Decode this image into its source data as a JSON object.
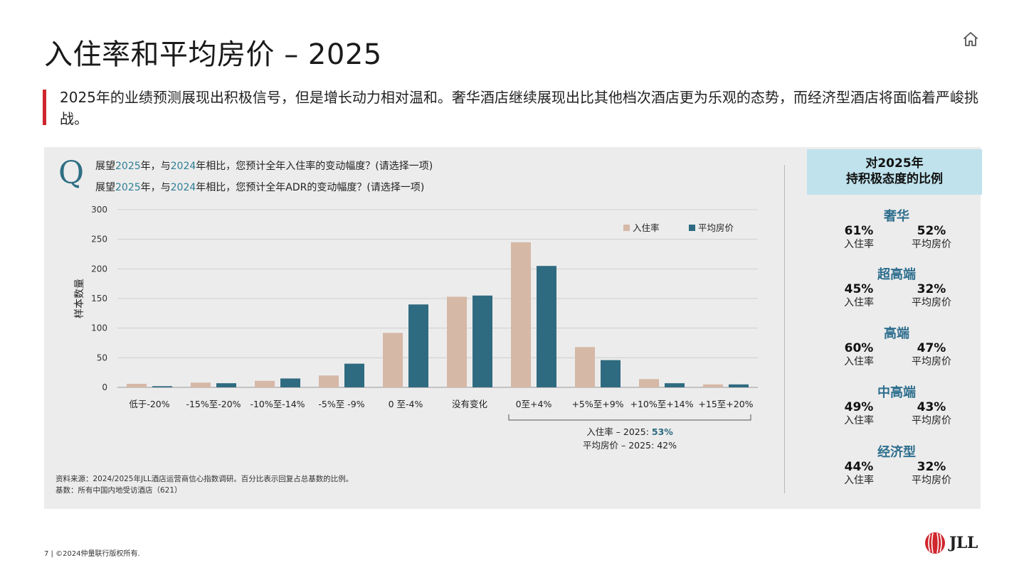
{
  "page": {
    "title": "入住率和平均房价 – 2025",
    "summary": "2025年的业绩预测展现出积极信号，但是增长动力相对温和。奢华酒店继续展现出比其他档次酒店更为乐观的态势，而经济型酒店将面临着严峻挑战。",
    "footer": "7 | ©2024仲量联行版权所有.",
    "logo_text": "JLL"
  },
  "question": {
    "glyph": "Q",
    "q1": {
      "pre": "展望",
      "year1": "2025",
      "mid": "年，与",
      "year2": "2024",
      "post": "年相比，您预计全年入住率的变动幅度？(请选择一项)"
    },
    "q2": {
      "pre": "展望",
      "year1": "2025",
      "mid": "年，与",
      "year2": "2024",
      "post": "年相比，您预计全年ADR的变动幅度？(请选择一项)"
    }
  },
  "source": {
    "line1": "资料来源：2024/2025年JLL酒店运营商信心指数调研。百分比表示回复占总基数的比例。",
    "line2": "基数：所有中国内地受访酒店（621）"
  },
  "chart_data": {
    "type": "bar",
    "ylabel": "样本数量",
    "ylim": [
      0,
      300
    ],
    "yticks": [
      0,
      50,
      100,
      150,
      200,
      250,
      300
    ],
    "categories": [
      "低于-20%",
      "-15%至-20%",
      "-10%至-14%",
      "-5%至 -9%",
      "0 至-4%",
      "没有变化",
      "0至+4%",
      "+5%至+9%",
      "+10%至+14%",
      "+15至+20%"
    ],
    "series": [
      {
        "name": "入住率",
        "color": "#d6b8a6",
        "values": [
          6,
          8,
          11,
          20,
          92,
          153,
          245,
          68,
          14,
          5
        ]
      },
      {
        "name": "平均房价",
        "color": "#2f6b80",
        "values": [
          2,
          7,
          15,
          40,
          140,
          155,
          205,
          46,
          7,
          5
        ]
      }
    ],
    "legend_position": "top-right",
    "annotation": {
      "line1_prefix": "入住率 – 2025: ",
      "line1_value": "53%",
      "line2": "平均房价 – 2025: 42%"
    }
  },
  "panel": {
    "heading_line1": "对2025年",
    "heading_line2": "持积极态度的比例",
    "col1_label": "入住率",
    "col2_label": "平均房价",
    "segments": [
      {
        "name": "奢华",
        "occupancy": "61%",
        "adr": "52%"
      },
      {
        "name": "超高端",
        "occupancy": "45%",
        "adr": "32%"
      },
      {
        "name": "高端",
        "occupancy": "60%",
        "adr": "47%"
      },
      {
        "name": "中高端",
        "occupancy": "49%",
        "adr": "43%"
      },
      {
        "name": "经济型",
        "occupancy": "44%",
        "adr": "32%"
      }
    ]
  }
}
